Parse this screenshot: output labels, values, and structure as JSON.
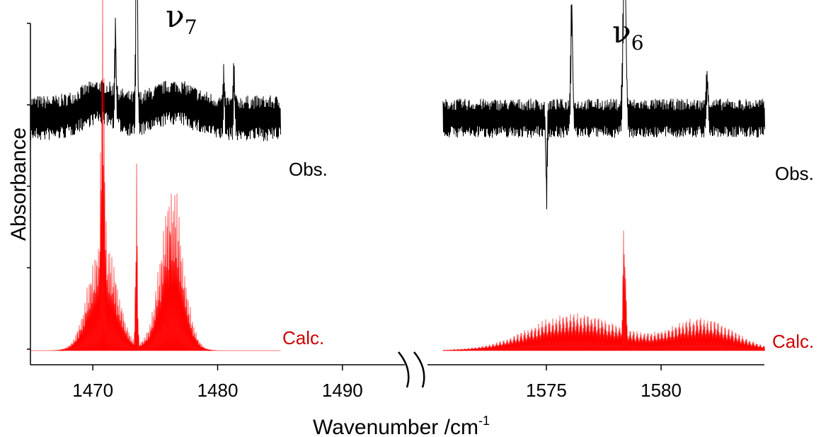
{
  "chart_data": {
    "type": "line",
    "xlabel": "Wavenumber  /cm",
    "xlabel_superscript": "-1",
    "ylabel": "Absorbance",
    "axis_break": true,
    "colors": {
      "obs": "#000000",
      "calc": "#ff0000"
    },
    "panels": [
      {
        "band": "ν",
        "band_subscript": "7",
        "xlim": [
          1465,
          1495
        ],
        "ticks": [
          "1470",
          "1480",
          "1490"
        ],
        "obs_label": "Obs.",
        "calc_label": "Calc.",
        "data_xrange": [
          1465,
          1485
        ],
        "series": [
          {
            "name": "Obs.",
            "trace": "obs",
            "baseline": 0.71,
            "noise": 0.07,
            "features": [
              {
                "x": 1470.5,
                "amp": 0.05,
                "width": 1.4
              },
              {
                "x": 1471.8,
                "amp": 0.24,
                "width": 0.05
              },
              {
                "x": 1473.5,
                "amp": 0.64,
                "width": 0.06
              },
              {
                "x": 1476.5,
                "amp": 0.05,
                "width": 1.6
              },
              {
                "x": 1480.5,
                "amp": 0.1,
                "width": 0.05
              },
              {
                "x": 1481.3,
                "amp": 0.13,
                "width": 0.05
              }
            ]
          },
          {
            "name": "Calc.",
            "trace": "calc",
            "baseline": 0.0,
            "features": [
              {
                "x": 1470.8,
                "amp": 0.87,
                "width": 0.12
              },
              {
                "x": 1470.8,
                "amp": 0.38,
                "width": 1.1
              },
              {
                "x": 1473.5,
                "amp": 0.66,
                "width": 0.07
              },
              {
                "x": 1476.3,
                "amp": 0.4,
                "width": 1.0
              },
              {
                "x": 1476.4,
                "amp": 0.15,
                "width": 0.6
              }
            ]
          }
        ]
      },
      {
        "band": "ν",
        "band_subscript": "6",
        "xlim": [
          1570.5,
          1584.5
        ],
        "ticks": [
          "1575",
          "1580"
        ],
        "obs_label": "Obs.",
        "calc_label": "Calc.",
        "data_xrange": [
          1570.5,
          1584.5
        ],
        "series": [
          {
            "name": "Obs.",
            "trace": "obs",
            "baseline": 0.71,
            "noise": 0.06,
            "features": [
              {
                "x": 1576.1,
                "amp": 0.33,
                "width": 0.04
              },
              {
                "x": 1578.4,
                "amp": 0.5,
                "width": 0.06
              },
              {
                "x": 1575.0,
                "amp": -0.22,
                "width": 0.03
              },
              {
                "x": 1582.0,
                "amp": 0.12,
                "width": 0.04
              }
            ]
          },
          {
            "name": "Calc.",
            "trace": "calc",
            "baseline": 0.0,
            "features": [
              {
                "x": 1576.3,
                "amp": 0.12,
                "width": 2.0
              },
              {
                "x": 1578.4,
                "amp": 0.44,
                "width": 0.05
              },
              {
                "x": 1581.8,
                "amp": 0.1,
                "width": 1.4
              }
            ]
          }
        ]
      }
    ]
  }
}
